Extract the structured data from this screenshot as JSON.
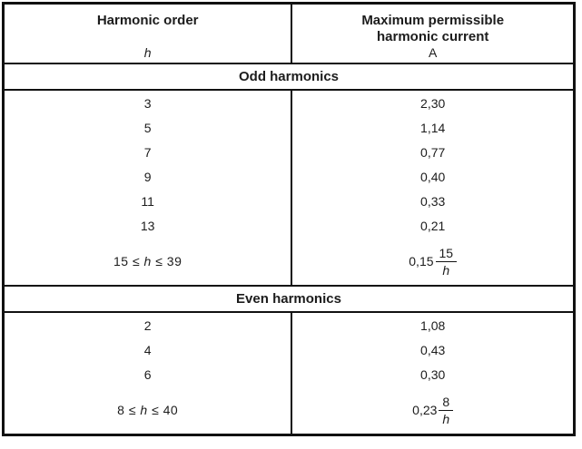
{
  "table": {
    "header": {
      "col1": {
        "title": "Harmonic order",
        "symbol": "h"
      },
      "col2": {
        "title_line1": "Maximum permissible",
        "title_line2": "harmonic current",
        "unit": "A"
      }
    },
    "sections": [
      {
        "band": "Odd harmonics",
        "rows": [
          {
            "type": "simple",
            "order": "3",
            "current": "2,30"
          },
          {
            "type": "simple",
            "order": "5",
            "current": "1,14"
          },
          {
            "type": "simple",
            "order": "7",
            "current": "0,77"
          },
          {
            "type": "simple",
            "order": "9",
            "current": "0,40"
          },
          {
            "type": "simple",
            "order": "11",
            "current": "0,33"
          },
          {
            "type": "simple",
            "order": "13",
            "current": "0,21"
          },
          {
            "type": "formula",
            "range": {
              "low": "15",
              "le": "≤",
              "var": "h",
              "high": "39"
            },
            "formula": {
              "coeff": "0,15",
              "num": "15",
              "den": "h"
            }
          }
        ]
      },
      {
        "band": "Even harmonics",
        "rows": [
          {
            "type": "simple",
            "order": "2",
            "current": "1,08"
          },
          {
            "type": "simple",
            "order": "4",
            "current": "0,43"
          },
          {
            "type": "simple",
            "order": "6",
            "current": "0,30"
          },
          {
            "type": "formula",
            "range": {
              "low": "8",
              "le": "≤",
              "var": "h",
              "high": "40"
            },
            "formula": {
              "coeff": "0,23",
              "num": "8",
              "den": "h"
            }
          }
        ]
      }
    ]
  },
  "colors": {
    "border": "#111111",
    "text": "#1c1c1c",
    "background": "#ffffff"
  }
}
